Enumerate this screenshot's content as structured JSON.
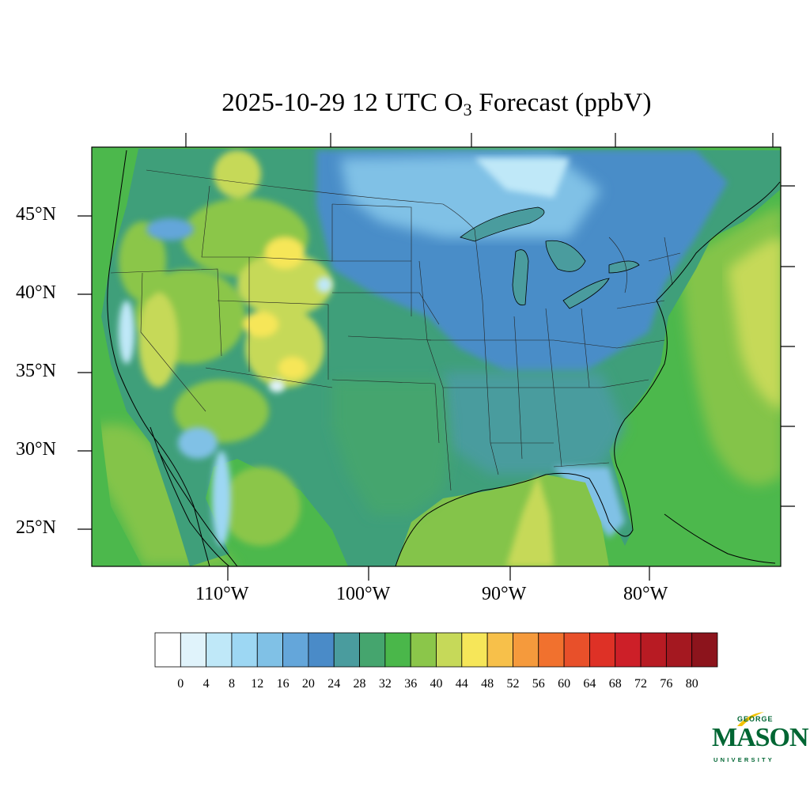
{
  "title": {
    "prefix": "2025-10-29 12 UTC O",
    "subscript": "3",
    "suffix": " Forecast (ppbV)"
  },
  "map": {
    "lat_labels": [
      "45°N",
      "40°N",
      "35°N",
      "30°N",
      "25°N"
    ],
    "lon_labels": [
      "110°W",
      "100°W",
      "90°W",
      "80°W"
    ],
    "field_colors": {
      "ocean": "#4cb84c",
      "gulf": "#84c44a",
      "west": "#3f9f7a",
      "north": "#4a8dc8",
      "lightblue": "#9ad5f2",
      "yellow": "#c8d855"
    }
  },
  "colorbar": {
    "labels": [
      "0",
      "4",
      "8",
      "12",
      "16",
      "20",
      "24",
      "28",
      "32",
      "36",
      "40",
      "44",
      "48",
      "52",
      "56",
      "60",
      "64",
      "68",
      "72",
      "76",
      "80"
    ],
    "colors": [
      "#ffffff",
      "#e0f3fb",
      "#bfe8f8",
      "#9dd7f3",
      "#80c1e6",
      "#64a6da",
      "#4a8bc8",
      "#4a9c9e",
      "#45a56e",
      "#4ab74a",
      "#8bc64a",
      "#c6d959",
      "#f6e659",
      "#f7c04a",
      "#f59a3c",
      "#f1712e",
      "#e8502a",
      "#de3126",
      "#cd1f28",
      "#b81b23",
      "#a41820",
      "#8c141c"
    ]
  },
  "logo": {
    "line1": "GEORGE",
    "line2": "MASON",
    "line3": "UNIVERSITY",
    "color": "#006633",
    "accent": "#f2c200"
  }
}
